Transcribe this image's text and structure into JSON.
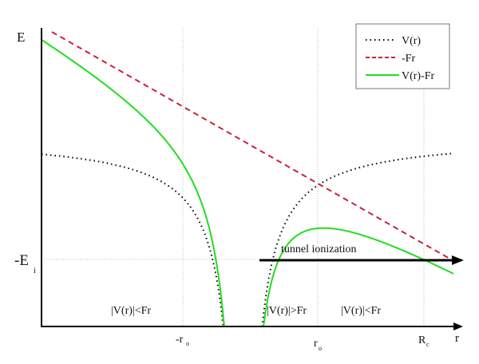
{
  "axes": {
    "y_label": "E",
    "x_label": "r",
    "level_label": "-E",
    "level_sub": "i",
    "ticks": [
      {
        "main": "-r",
        "sub": "o"
      },
      {
        "main": "r",
        "sub": "o"
      },
      {
        "main": "R",
        "sub": "c"
      }
    ]
  },
  "legend": {
    "items": [
      {
        "label": "V(r)",
        "color": "#000000",
        "style": "dotted"
      },
      {
        "label": "-Fr",
        "color": "#cc1f3a",
        "style": "dashed"
      },
      {
        "label": "V(r)-Fr",
        "color": "#22dd22",
        "style": "solid"
      }
    ]
  },
  "annotations": {
    "tunnel": "tunnel ionization",
    "region_left": "|V(r)|<Fr",
    "region_middle": "|V(r)|>Fr",
    "region_right": "|V(r)|<Fr"
  }
}
